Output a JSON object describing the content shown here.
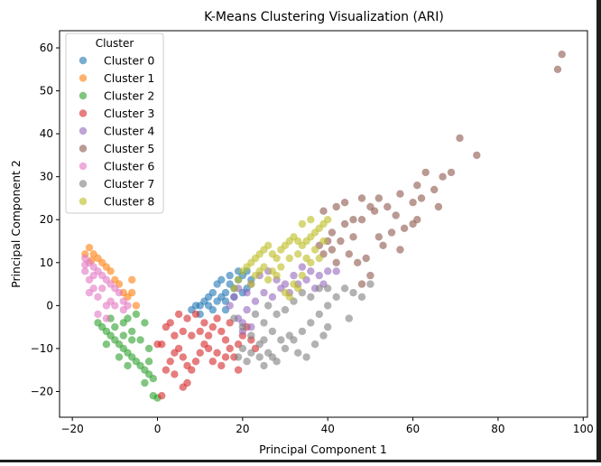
{
  "chart_data": {
    "type": "scatter",
    "title": "K-Means Clustering Visualization (ARI)",
    "xlabel": "Principal Component 1",
    "ylabel": "Principal Component 2",
    "xlim": [
      -23,
      101
    ],
    "ylim": [
      -26,
      64
    ],
    "xticks": [
      -20,
      0,
      20,
      40,
      60,
      80,
      100
    ],
    "yticks": [
      -20,
      -10,
      0,
      10,
      20,
      30,
      40,
      50,
      60
    ],
    "xtick_labels": [
      "−20",
      "0",
      "20",
      "40",
      "60",
      "80",
      "100"
    ],
    "ytick_labels": [
      "−20",
      "−10",
      "0",
      "10",
      "20",
      "30",
      "40",
      "50",
      "60"
    ],
    "grid": false,
    "legend": {
      "title": "Cluster",
      "placement": "top-left"
    },
    "series": [
      {
        "name": "Cluster 0",
        "color": "#1f77b4",
        "points": [
          [
            8,
            -1
          ],
          [
            10,
            -2
          ],
          [
            12,
            0
          ],
          [
            14,
            1
          ],
          [
            15,
            2
          ],
          [
            16,
            3
          ],
          [
            18,
            4
          ],
          [
            17,
            5
          ],
          [
            19,
            6
          ],
          [
            20,
            7
          ],
          [
            21,
            8
          ],
          [
            22,
            6
          ],
          [
            13,
            3
          ],
          [
            11,
            1
          ],
          [
            9,
            0
          ],
          [
            16,
            -1
          ],
          [
            18,
            2
          ],
          [
            20,
            3
          ],
          [
            14,
            5
          ],
          [
            12,
            2
          ],
          [
            15,
            6
          ],
          [
            17,
            7
          ],
          [
            19,
            8
          ],
          [
            21,
            4
          ],
          [
            10,
            0
          ],
          [
            13,
            -1
          ],
          [
            16,
            1
          ]
        ]
      },
      {
        "name": "Cluster 1",
        "color": "#ff7f0e",
        "points": [
          [
            -16,
            13.5
          ],
          [
            -15,
            12
          ],
          [
            -14,
            11
          ],
          [
            -12,
            9
          ],
          [
            -11,
            8
          ],
          [
            -10,
            6
          ],
          [
            -9,
            5
          ],
          [
            -8,
            3
          ],
          [
            -7,
            2
          ],
          [
            -6,
            6
          ],
          [
            -6,
            3
          ],
          [
            -5,
            0
          ],
          [
            -13,
            10
          ],
          [
            -17,
            12
          ],
          [
            -15.5,
            10.5
          ]
        ]
      },
      {
        "name": "Cluster 2",
        "color": "#2ca02c",
        "points": [
          [
            -14,
            -4
          ],
          [
            -13,
            -5
          ],
          [
            -12,
            -6
          ],
          [
            -11,
            -7
          ],
          [
            -10,
            -8
          ],
          [
            -9,
            -9
          ],
          [
            -8,
            -10
          ],
          [
            -7,
            -11
          ],
          [
            -6,
            -12
          ],
          [
            -5,
            -13
          ],
          [
            -4,
            -14
          ],
          [
            -3,
            -15
          ],
          [
            -2,
            -16
          ],
          [
            -1,
            -17
          ],
          [
            -1,
            -21
          ],
          [
            0,
            -21.5
          ],
          [
            -10,
            -5
          ],
          [
            -8,
            -4
          ],
          [
            -6,
            -6
          ],
          [
            -4,
            -8
          ],
          [
            -2,
            -10
          ],
          [
            -3,
            -4
          ],
          [
            -5,
            -2
          ],
          [
            -7,
            -3
          ],
          [
            -11,
            -3
          ],
          [
            -9,
            -12
          ],
          [
            -7,
            -14
          ],
          [
            -3,
            -18
          ],
          [
            -6,
            -8
          ],
          [
            -8,
            -7
          ],
          [
            -12,
            -9
          ],
          [
            -2,
            -13
          ]
        ]
      },
      {
        "name": "Cluster 3",
        "color": "#d62728",
        "points": [
          [
            1,
            -9
          ],
          [
            2,
            -5
          ],
          [
            3,
            -4
          ],
          [
            4,
            -7
          ],
          [
            5,
            -10
          ],
          [
            6,
            -12
          ],
          [
            7,
            -14
          ],
          [
            8,
            -15
          ],
          [
            9,
            -13
          ],
          [
            10,
            -11
          ],
          [
            11,
            -9
          ],
          [
            12,
            -7
          ],
          [
            13,
            -5
          ],
          [
            14,
            -3
          ],
          [
            15,
            -6
          ],
          [
            16,
            -8
          ],
          [
            17,
            -10
          ],
          [
            18,
            -12
          ],
          [
            19,
            -9
          ],
          [
            20,
            -7
          ],
          [
            21,
            -5
          ],
          [
            22,
            -8
          ],
          [
            23,
            -10
          ],
          [
            7,
            -3
          ],
          [
            5,
            -2
          ],
          [
            9,
            -2
          ],
          [
            11,
            -4
          ],
          [
            13,
            -13
          ],
          [
            15,
            -14
          ],
          [
            6,
            -19
          ],
          [
            7,
            -18
          ],
          [
            1,
            -21
          ],
          [
            4,
            -16
          ],
          [
            3,
            -13
          ],
          [
            2,
            -15
          ],
          [
            0,
            -9
          ],
          [
            19,
            -15
          ],
          [
            17,
            -4
          ],
          [
            8,
            -7
          ],
          [
            10,
            -6
          ],
          [
            12,
            -10
          ],
          [
            14,
            -11
          ],
          [
            16,
            -12
          ],
          [
            6,
            -6
          ],
          [
            4,
            -11
          ]
        ]
      },
      {
        "name": "Cluster 4",
        "color": "#9467bd",
        "points": [
          [
            17,
            0
          ],
          [
            18,
            2
          ],
          [
            19,
            -3
          ],
          [
            20,
            -6
          ],
          [
            21,
            3
          ],
          [
            22,
            5
          ],
          [
            24,
            7
          ],
          [
            26,
            8
          ],
          [
            28,
            6
          ],
          [
            30,
            5
          ],
          [
            32,
            7
          ],
          [
            34,
            9
          ],
          [
            36,
            8
          ],
          [
            38,
            7
          ],
          [
            40,
            8
          ],
          [
            42,
            8
          ],
          [
            19,
            4
          ],
          [
            21,
            -1
          ],
          [
            23,
            1
          ],
          [
            25,
            3
          ],
          [
            27,
            2
          ],
          [
            29,
            4
          ],
          [
            31,
            3
          ],
          [
            33,
            5
          ],
          [
            35,
            6
          ],
          [
            37,
            4
          ],
          [
            39,
            5
          ],
          [
            20,
            -4
          ],
          [
            22,
            -5
          ]
        ]
      },
      {
        "name": "Cluster 5",
        "color": "#8c564b",
        "points": [
          [
            95,
            58.5
          ],
          [
            94,
            55
          ],
          [
            71,
            39
          ],
          [
            75,
            35
          ],
          [
            63,
            31
          ],
          [
            69,
            31
          ],
          [
            67,
            30
          ],
          [
            65,
            27
          ],
          [
            61,
            28
          ],
          [
            60,
            24
          ],
          [
            62,
            25
          ],
          [
            57,
            26
          ],
          [
            52,
            25
          ],
          [
            48,
            25
          ],
          [
            44,
            24
          ],
          [
            42,
            23
          ],
          [
            50,
            23
          ],
          [
            54,
            23
          ],
          [
            46,
            20
          ],
          [
            39,
            22
          ],
          [
            41,
            17
          ],
          [
            40,
            15
          ],
          [
            43,
            15
          ],
          [
            45,
            12
          ],
          [
            47,
            10
          ],
          [
            49,
            11
          ],
          [
            53,
            14
          ],
          [
            55,
            17
          ],
          [
            58,
            18
          ],
          [
            60,
            19
          ],
          [
            56,
            21
          ],
          [
            51,
            22
          ],
          [
            48,
            20
          ],
          [
            44,
            19
          ],
          [
            46,
            16
          ],
          [
            38,
            14
          ],
          [
            41,
            13
          ],
          [
            52,
            16
          ],
          [
            57,
            13
          ],
          [
            66,
            23
          ],
          [
            61,
            20
          ],
          [
            50,
            7
          ],
          [
            48,
            5
          ],
          [
            42,
            10
          ],
          [
            39,
            12
          ]
        ]
      },
      {
        "name": "Cluster 6",
        "color": "#e377c2",
        "points": [
          [
            -17,
            11
          ],
          [
            -16,
            10
          ],
          [
            -15,
            9
          ],
          [
            -14,
            8
          ],
          [
            -13,
            7
          ],
          [
            -12,
            6
          ],
          [
            -11,
            5
          ],
          [
            -10,
            4
          ],
          [
            -9,
            3
          ],
          [
            -8,
            1
          ],
          [
            -7,
            0
          ],
          [
            -8,
            -1
          ],
          [
            -10,
            0
          ],
          [
            -12,
            0
          ],
          [
            -14,
            2
          ],
          [
            -15,
            4
          ],
          [
            -16,
            6
          ],
          [
            -17,
            8
          ],
          [
            -16,
            3
          ],
          [
            -14,
            -2
          ],
          [
            -12,
            -3
          ],
          [
            -11,
            1
          ],
          [
            -13,
            4
          ],
          [
            -15,
            7
          ],
          [
            -17,
            9.5
          ]
        ]
      },
      {
        "name": "Cluster 7",
        "color": "#7f7f7f",
        "points": [
          [
            18,
            -3
          ],
          [
            20,
            -5
          ],
          [
            22,
            -7
          ],
          [
            24,
            -9
          ],
          [
            26,
            -11
          ],
          [
            28,
            -13
          ],
          [
            30,
            -10
          ],
          [
            32,
            -8
          ],
          [
            34,
            -6
          ],
          [
            36,
            -4
          ],
          [
            38,
            -2
          ],
          [
            40,
            0
          ],
          [
            42,
            2
          ],
          [
            44,
            4
          ],
          [
            46,
            3
          ],
          [
            48,
            2
          ],
          [
            50,
            5
          ],
          [
            24,
            -12
          ],
          [
            25,
            -14
          ],
          [
            27,
            -12
          ],
          [
            19,
            -12
          ],
          [
            20,
            -10
          ],
          [
            21,
            -13
          ],
          [
            22,
            -11
          ],
          [
            23,
            -2
          ],
          [
            25,
            -4
          ],
          [
            27,
            -6
          ],
          [
            29,
            -8
          ],
          [
            31,
            -7
          ],
          [
            33,
            -11
          ],
          [
            35,
            -12
          ],
          [
            37,
            -9
          ],
          [
            39,
            -7
          ],
          [
            26,
            0
          ],
          [
            28,
            -2
          ],
          [
            30,
            -1
          ],
          [
            32,
            1
          ],
          [
            34,
            3
          ],
          [
            36,
            2
          ],
          [
            38,
            4
          ],
          [
            40,
            4
          ],
          [
            25,
            -8
          ],
          [
            45,
            -3
          ],
          [
            40,
            -5
          ]
        ]
      },
      {
        "name": "Cluster 8",
        "color": "#bcbd22",
        "points": [
          [
            18,
            4
          ],
          [
            19,
            6
          ],
          [
            20,
            8
          ],
          [
            21,
            9
          ],
          [
            22,
            10
          ],
          [
            23,
            11
          ],
          [
            24,
            12
          ],
          [
            25,
            13
          ],
          [
            26,
            14
          ],
          [
            27,
            12
          ],
          [
            28,
            11
          ],
          [
            29,
            13
          ],
          [
            30,
            14
          ],
          [
            31,
            15
          ],
          [
            32,
            16
          ],
          [
            33,
            15
          ],
          [
            34,
            14
          ],
          [
            35,
            15
          ],
          [
            36,
            16
          ],
          [
            37,
            17
          ],
          [
            38,
            18
          ],
          [
            39,
            19
          ],
          [
            40,
            20
          ],
          [
            23,
            7
          ],
          [
            25,
            9
          ],
          [
            27,
            8
          ],
          [
            29,
            9
          ],
          [
            31,
            11
          ],
          [
            33,
            12
          ],
          [
            35,
            11
          ],
          [
            37,
            13
          ],
          [
            39,
            15
          ],
          [
            30,
            3
          ],
          [
            32,
            5
          ],
          [
            34,
            7
          ],
          [
            36,
            10
          ],
          [
            38,
            11
          ],
          [
            26,
            6
          ],
          [
            28,
            7
          ],
          [
            31,
            2
          ],
          [
            33,
            4
          ],
          [
            22,
            5
          ],
          [
            24,
            8
          ],
          [
            34,
            19
          ],
          [
            36,
            20
          ]
        ]
      }
    ]
  }
}
